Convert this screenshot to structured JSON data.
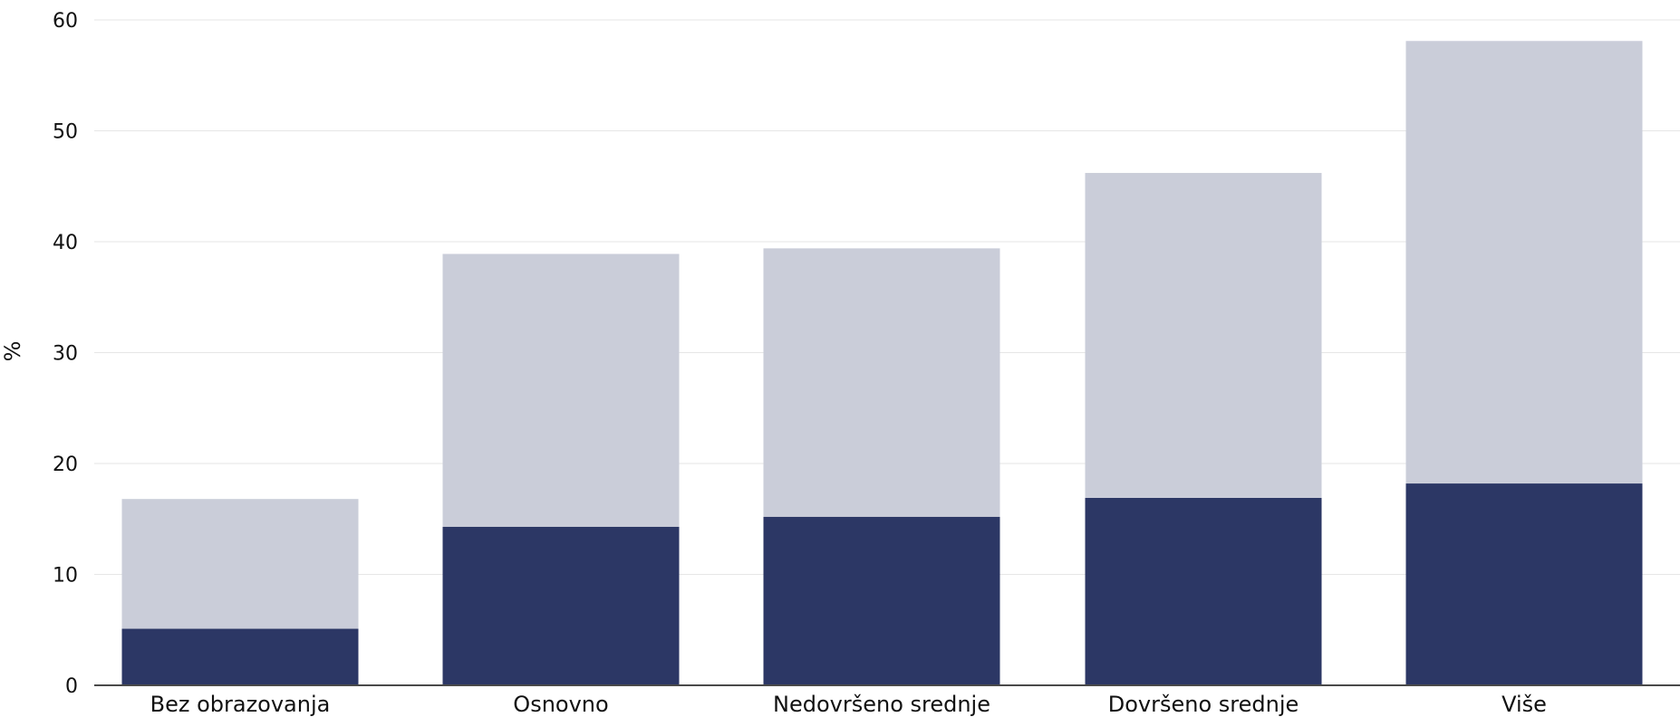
{
  "chart_data": {
    "type": "bar",
    "stacked": true,
    "categories": [
      "Bez obrazovanja",
      "Osnovno",
      "Nedovršeno srednje",
      "Dovršeno srednje",
      "Više"
    ],
    "series": [
      {
        "values": [
          5.1,
          14.3,
          15.2,
          16.9,
          18.2
        ]
      },
      {
        "values": [
          11.7,
          24.6,
          24.2,
          29.3,
          39.9
        ]
      }
    ],
    "totals": [
      16.8,
      38.9,
      39.4,
      46.2,
      58.1
    ],
    "xlabel": "",
    "ylabel": "%",
    "ylim": [
      0,
      60
    ],
    "yticks": [
      0,
      10,
      20,
      30,
      40,
      50,
      60
    ],
    "grid": true,
    "legend": "none",
    "colors": {
      "series": [
        "#2c3765",
        "#cacdd9"
      ],
      "grid": "#e6e6e6",
      "axis": "#4a4a4a"
    }
  }
}
